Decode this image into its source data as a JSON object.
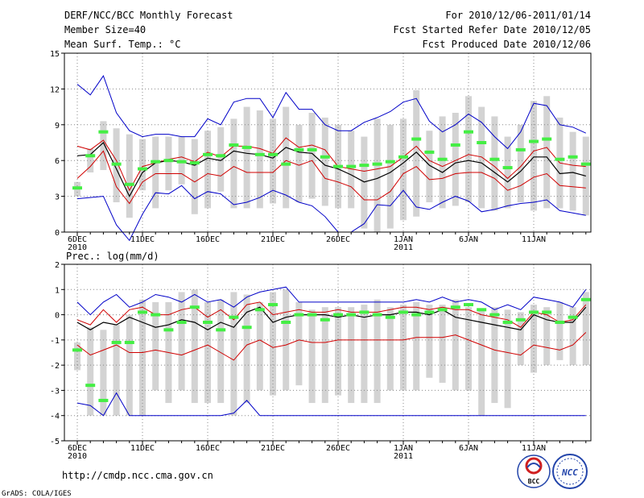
{
  "header": {
    "title": "DERF/NCC/BCC Monthly Forecast",
    "member_size": "Member Size=40",
    "variable": "Mean Surf. Temp.: °C",
    "period": "For 2010/12/06-2011/01/14",
    "fcst_started": "Fcst Started Refer Date 2010/12/05",
    "fcst_produced": "Fcst Produced Date 2010/12/06"
  },
  "footer": {
    "url": "http://cmdp.ncc.cma.gov.cn",
    "grads": "GrADS: COLA/IGES",
    "logo_bcc": "BCC",
    "logo_ncc": "NCC"
  },
  "colors": {
    "box": "#d3d3d3",
    "max_min": "#0000c8",
    "quartile": "#d00000",
    "median": "#000000",
    "observed": "#44ee44",
    "grid": "#888888"
  },
  "chart_data": [
    {
      "type": "line",
      "title": "Mean Surf. Temp.: °C",
      "ylabel": "°C",
      "ylim": [
        0,
        15
      ],
      "yticks": [
        "15",
        "12",
        "9",
        "6",
        "3",
        "0"
      ],
      "ytick_values": [
        15,
        12,
        9,
        6,
        3,
        0
      ],
      "x_tick_index": [
        0,
        5,
        10,
        15,
        20,
        25,
        30,
        35
      ],
      "x_tick_labels": [
        "6DEC",
        "11DEC",
        "16DEC",
        "21DEC",
        "26DEC",
        "1JAN",
        "6JAN",
        "11JAN"
      ],
      "x_year_labels": [
        {
          "index": 0,
          "label": "2010"
        },
        {
          "index": 25,
          "label": "2011"
        }
      ],
      "box_top": [
        4.2,
        7.0,
        9.3,
        8.7,
        8.2,
        7.8,
        8.0,
        8.0,
        8.0,
        7.8,
        8.5,
        8.8,
        9.5,
        10.5,
        10.2,
        9.5,
        10.5,
        9.0,
        10.0,
        9.6,
        9.0,
        8.5,
        8.0,
        9.5,
        9.0,
        9.5,
        11.9,
        8.5,
        9.7,
        10.0,
        11.4,
        10.5,
        9.7,
        8.0,
        9.0,
        11.0,
        11.4,
        9.6,
        8.4,
        8.0
      ],
      "box_bottom": [
        3.0,
        5.0,
        5.2,
        2.5,
        1.2,
        3.5,
        2.0,
        3.5,
        4.0,
        1.5,
        2.0,
        3.4,
        2.0,
        2.0,
        2.0,
        2.4,
        2.0,
        2.5,
        2.8,
        2.2,
        2.0,
        2.0,
        0.3,
        0.0,
        0.3,
        1.0,
        1.3,
        2.5,
        2.0,
        2.2,
        2.5,
        2.0,
        1.8,
        2.0,
        2.5,
        1.8,
        2.0,
        2.0,
        1.8,
        1.4
      ],
      "max": [
        12.4,
        11.5,
        13.1,
        10.0,
        8.5,
        8.0,
        8.2,
        8.2,
        8.0,
        8.0,
        9.5,
        9.0,
        10.9,
        11.2,
        11.2,
        9.6,
        11.7,
        10.3,
        10.3,
        9.0,
        8.5,
        8.5,
        9.2,
        9.6,
        10.1,
        10.9,
        11.2,
        9.3,
        8.4,
        9.0,
        9.9,
        9.2,
        8.0,
        7.0,
        8.4,
        10.8,
        10.6,
        9.0,
        8.8,
        8.3
      ],
      "q3": [
        7.2,
        6.9,
        7.7,
        6.0,
        3.5,
        5.5,
        5.8,
        6.1,
        6.3,
        5.9,
        6.7,
        6.3,
        7.2,
        7.2,
        7.0,
        6.6,
        7.9,
        7.1,
        7.3,
        6.9,
        5.5,
        5.3,
        5.1,
        5.3,
        5.5,
        6.3,
        7.2,
        6.0,
        5.5,
        6.0,
        6.5,
        6.3,
        5.5,
        4.5,
        5.5,
        6.8,
        7.1,
        5.8,
        5.6,
        5.5
      ],
      "median": [
        6.4,
        6.5,
        7.5,
        5.3,
        3.0,
        5.0,
        5.8,
        6.0,
        5.9,
        5.6,
        6.2,
        6.0,
        6.8,
        6.6,
        6.5,
        6.2,
        7.1,
        6.7,
        6.6,
        5.6,
        5.3,
        4.8,
        4.2,
        4.5,
        5.0,
        5.8,
        6.7,
        5.6,
        5.0,
        5.8,
        6.0,
        5.8,
        5.0,
        4.2,
        5.1,
        6.3,
        6.3,
        4.9,
        5.0,
        4.7
      ],
      "q1": [
        4.5,
        5.5,
        6.8,
        3.8,
        2.4,
        4.2,
        4.9,
        4.9,
        4.9,
        4.2,
        4.9,
        4.7,
        5.5,
        5.0,
        5.0,
        5.0,
        6.0,
        5.6,
        6.0,
        4.5,
        4.2,
        3.8,
        2.7,
        2.7,
        3.4,
        4.9,
        5.5,
        4.4,
        4.5,
        4.9,
        5.0,
        5.0,
        4.5,
        3.5,
        3.9,
        4.6,
        4.9,
        3.9,
        3.8,
        3.7
      ],
      "min": [
        2.8,
        2.9,
        3.0,
        0.6,
        -0.7,
        1.5,
        3.3,
        3.2,
        3.9,
        2.8,
        3.4,
        3.2,
        2.3,
        2.5,
        2.9,
        3.5,
        3.1,
        2.5,
        2.2,
        1.3,
        0.0,
        0.0,
        0.7,
        2.3,
        2.2,
        3.5,
        2.1,
        1.9,
        2.5,
        3.0,
        2.6,
        1.7,
        1.9,
        2.2,
        2.4,
        2.5,
        2.7,
        1.8,
        1.6,
        1.4
      ],
      "observed": [
        3.7,
        6.4,
        8.4,
        5.7,
        4.0,
        5.3,
        5.9,
        6.0,
        5.9,
        5.8,
        6.5,
        6.4,
        7.3,
        7.1,
        6.5,
        6.5,
        5.7,
        6.9,
        6.9,
        6.3,
        5.5,
        5.5,
        5.6,
        5.7,
        5.9,
        6.3,
        7.8,
        6.7,
        6.1,
        7.3,
        8.4,
        7.5,
        6.1,
        5.4,
        6.9,
        7.6,
        7.8,
        6.1,
        6.3,
        5.7
      ]
    },
    {
      "type": "line",
      "title": "Prec.: log(mm/d)",
      "ylabel": "log(mm/d)",
      "ylim": [
        -5,
        2
      ],
      "yticks": [
        "2",
        "1",
        "0",
        "-1",
        "-2",
        "-3",
        "-4",
        "-5"
      ],
      "ytick_values": [
        2,
        1,
        0,
        -1,
        -2,
        -3,
        -4,
        -5
      ],
      "x_tick_index": [
        0,
        5,
        10,
        15,
        20,
        25,
        30,
        35
      ],
      "x_tick_labels": [
        "6DEC",
        "11DEC",
        "16DEC",
        "21DEC",
        "26DEC",
        "1JAN",
        "6JAN",
        "11JAN"
      ],
      "x_year_labels": [
        {
          "index": 0,
          "label": "2010"
        },
        {
          "index": 25,
          "label": "2011"
        }
      ],
      "box_top": [
        -1.1,
        -0.5,
        -0.6,
        -0.4,
        0.0,
        0.6,
        0.5,
        0.5,
        0.9,
        1.0,
        0.5,
        0.6,
        0.9,
        0.8,
        0.5,
        0.9,
        1.0,
        0.5,
        0.2,
        0.3,
        0.3,
        0.3,
        0.4,
        0.6,
        0.3,
        0.4,
        0.5,
        0.4,
        0.4,
        0.6,
        0.3,
        0.2,
        0.3,
        0.2,
        0.1,
        0.4,
        0.3,
        0.5,
        0.3,
        0.9
      ],
      "box_bottom": [
        -2.2,
        -4.0,
        -4.0,
        -4.0,
        -4.0,
        -4.0,
        -3.0,
        -3.5,
        -3.0,
        -3.5,
        -3.5,
        -3.5,
        -4.0,
        -3.5,
        -3.0,
        -3.2,
        -3.0,
        -2.8,
        -3.5,
        -3.5,
        -3.2,
        -3.5,
        -3.5,
        -3.5,
        -3.0,
        -3.0,
        -3.0,
        -2.5,
        -2.7,
        -3.0,
        -3.0,
        -4.0,
        -3.5,
        -3.7,
        -2.0,
        -2.3,
        -2.0,
        -1.8,
        -2.0,
        -2.0
      ],
      "max": [
        0.5,
        0.0,
        0.5,
        0.8,
        0.3,
        0.5,
        0.8,
        0.7,
        0.5,
        0.8,
        0.5,
        0.6,
        0.3,
        0.7,
        0.9,
        1.0,
        1.1,
        0.5,
        0.5,
        0.5,
        0.5,
        0.5,
        0.5,
        0.5,
        0.5,
        0.5,
        0.6,
        0.5,
        0.7,
        0.5,
        0.6,
        0.5,
        0.2,
        0.4,
        0.2,
        0.7,
        0.6,
        0.5,
        0.3,
        1.0
      ],
      "q3": [
        -0.2,
        -0.4,
        0.2,
        -0.3,
        0.2,
        0.3,
        0.0,
        0.0,
        0.2,
        0.3,
        -0.1,
        0.2,
        -0.2,
        0.4,
        0.5,
        0.0,
        0.1,
        0.2,
        0.1,
        0.1,
        0.2,
        0.1,
        0.1,
        0.1,
        0.2,
        0.3,
        0.3,
        0.2,
        0.3,
        0.2,
        0.2,
        0.0,
        -0.1,
        -0.2,
        -0.5,
        0.1,
        0.0,
        -0.3,
        -0.2,
        0.4
      ],
      "median": [
        -0.3,
        -0.6,
        -0.3,
        -0.4,
        -0.1,
        -0.3,
        -0.5,
        -0.4,
        -0.2,
        -0.3,
        -0.6,
        -0.3,
        -0.5,
        0.1,
        0.3,
        -0.3,
        -0.1,
        0.0,
        0.0,
        0.0,
        -0.1,
        0.0,
        -0.1,
        0.0,
        0.0,
        0.1,
        0.1,
        0.0,
        0.2,
        -0.1,
        -0.2,
        -0.3,
        -0.4,
        -0.5,
        -0.6,
        0.0,
        -0.2,
        -0.3,
        -0.3,
        0.3
      ],
      "q1": [
        -1.2,
        -1.6,
        -1.4,
        -1.2,
        -1.5,
        -1.5,
        -1.4,
        -1.5,
        -1.6,
        -1.4,
        -1.2,
        -1.5,
        -1.8,
        -1.2,
        -1.0,
        -1.3,
        -1.2,
        -1.0,
        -1.1,
        -1.1,
        -1.0,
        -1.0,
        -1.0,
        -1.0,
        -1.0,
        -1.0,
        -0.9,
        -0.9,
        -0.9,
        -0.8,
        -1.0,
        -1.2,
        -1.4,
        -1.5,
        -1.6,
        -1.2,
        -1.3,
        -1.4,
        -1.2,
        -0.7
      ],
      "min": [
        -3.5,
        -3.6,
        -4.0,
        -3.1,
        -4.0,
        -4.0,
        -4.0,
        -4.0,
        -4.0,
        -4.0,
        -4.0,
        -4.0,
        -3.9,
        -3.4,
        -4.0,
        -4.0,
        -4.0,
        -4.0,
        -4.0,
        -4.0,
        -4.0,
        -4.0,
        -4.0,
        -4.0,
        -4.0,
        -4.0,
        -4.0,
        -4.0,
        -4.0,
        -4.0,
        -4.0,
        -4.0,
        -4.0,
        -4.0,
        -4.0,
        -4.0,
        -4.0,
        -4.0,
        -4.0,
        -4.0
      ],
      "observed": [
        -1.4,
        -2.8,
        -3.4,
        -1.1,
        -1.1,
        0.1,
        0.0,
        -0.6,
        -0.3,
        0.3,
        -0.3,
        -0.6,
        -0.1,
        -0.5,
        0.2,
        0.4,
        -0.3,
        0.0,
        0.0,
        -0.2,
        0.0,
        0.0,
        0.1,
        0.0,
        -0.1,
        0.1,
        0.0,
        0.1,
        0.2,
        0.3,
        0.4,
        0.2,
        0.0,
        -0.3,
        -0.2,
        0.1,
        0.1,
        -0.3,
        -0.1,
        0.6
      ]
    }
  ]
}
